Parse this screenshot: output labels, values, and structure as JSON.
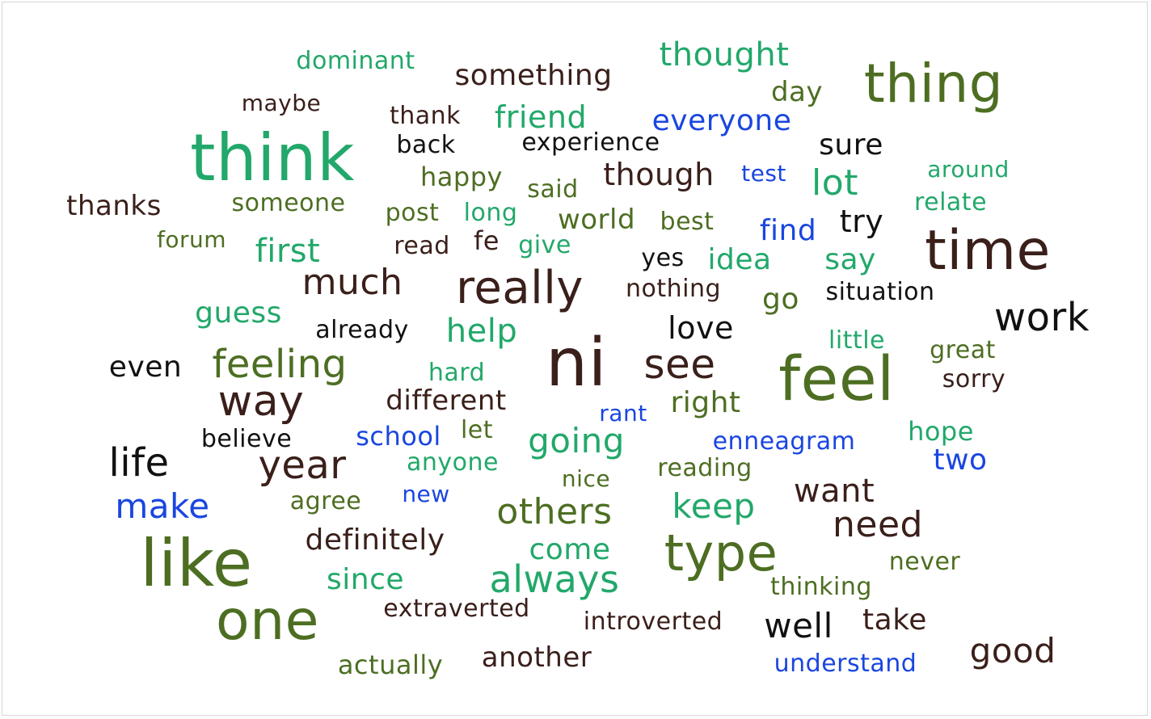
{
  "palette": {
    "dark_brown": "#3a1f1a",
    "black": "#111111",
    "olive": "#4d6e22",
    "teal_green": "#22a86a",
    "blue": "#1a46e0"
  },
  "words": [
    {
      "text": "dominant",
      "color": "teal_green"
    },
    {
      "text": "something",
      "color": "dark_brown"
    },
    {
      "text": "thought",
      "color": "teal_green"
    },
    {
      "text": "thing",
      "color": "olive"
    },
    {
      "text": "day",
      "color": "olive"
    },
    {
      "text": "maybe",
      "color": "dark_brown"
    },
    {
      "text": "thank",
      "color": "dark_brown"
    },
    {
      "text": "friend",
      "color": "teal_green"
    },
    {
      "text": "everyone",
      "color": "blue"
    },
    {
      "text": "think",
      "color": "teal_green"
    },
    {
      "text": "back",
      "color": "black"
    },
    {
      "text": "experience",
      "color": "black"
    },
    {
      "text": "sure",
      "color": "black"
    },
    {
      "text": "happy",
      "color": "olive"
    },
    {
      "text": "though",
      "color": "dark_brown"
    },
    {
      "text": "test",
      "color": "blue"
    },
    {
      "text": "lot",
      "color": "teal_green"
    },
    {
      "text": "around",
      "color": "teal_green"
    },
    {
      "text": "said",
      "color": "olive"
    },
    {
      "text": "thanks",
      "color": "dark_brown"
    },
    {
      "text": "someone",
      "color": "olive"
    },
    {
      "text": "relate",
      "color": "teal_green"
    },
    {
      "text": "post",
      "color": "olive"
    },
    {
      "text": "long",
      "color": "teal_green"
    },
    {
      "text": "world",
      "color": "olive"
    },
    {
      "text": "best",
      "color": "olive"
    },
    {
      "text": "find",
      "color": "blue"
    },
    {
      "text": "try",
      "color": "black"
    },
    {
      "text": "forum",
      "color": "olive"
    },
    {
      "text": "first",
      "color": "teal_green"
    },
    {
      "text": "read",
      "color": "dark_brown"
    },
    {
      "text": "fe",
      "color": "dark_brown"
    },
    {
      "text": "give",
      "color": "teal_green"
    },
    {
      "text": "time",
      "color": "dark_brown"
    },
    {
      "text": "yes",
      "color": "black"
    },
    {
      "text": "idea",
      "color": "teal_green"
    },
    {
      "text": "say",
      "color": "teal_green"
    },
    {
      "text": "much",
      "color": "dark_brown"
    },
    {
      "text": "really",
      "color": "dark_brown"
    },
    {
      "text": "nothing",
      "color": "dark_brown"
    },
    {
      "text": "go",
      "color": "olive"
    },
    {
      "text": "situation",
      "color": "black"
    },
    {
      "text": "guess",
      "color": "teal_green"
    },
    {
      "text": "work",
      "color": "black"
    },
    {
      "text": "already",
      "color": "black"
    },
    {
      "text": "help",
      "color": "teal_green"
    },
    {
      "text": "love",
      "color": "black"
    },
    {
      "text": "little",
      "color": "teal_green"
    },
    {
      "text": "great",
      "color": "olive"
    },
    {
      "text": "even",
      "color": "black"
    },
    {
      "text": "feeling",
      "color": "olive"
    },
    {
      "text": "ni",
      "color": "dark_brown"
    },
    {
      "text": "see",
      "color": "dark_brown"
    },
    {
      "text": "feel",
      "color": "olive"
    },
    {
      "text": "hard",
      "color": "teal_green"
    },
    {
      "text": "sorry",
      "color": "dark_brown"
    },
    {
      "text": "way",
      "color": "dark_brown"
    },
    {
      "text": "different",
      "color": "dark_brown"
    },
    {
      "text": "rant",
      "color": "blue"
    },
    {
      "text": "right",
      "color": "olive"
    },
    {
      "text": "believe",
      "color": "black"
    },
    {
      "text": "school",
      "color": "blue"
    },
    {
      "text": "let",
      "color": "olive"
    },
    {
      "text": "going",
      "color": "teal_green"
    },
    {
      "text": "enneagram",
      "color": "blue"
    },
    {
      "text": "hope",
      "color": "teal_green"
    },
    {
      "text": "life",
      "color": "black"
    },
    {
      "text": "year",
      "color": "dark_brown"
    },
    {
      "text": "anyone",
      "color": "teal_green"
    },
    {
      "text": "reading",
      "color": "olive"
    },
    {
      "text": "two",
      "color": "blue"
    },
    {
      "text": "nice",
      "color": "olive"
    },
    {
      "text": "want",
      "color": "dark_brown"
    },
    {
      "text": "make",
      "color": "blue"
    },
    {
      "text": "agree",
      "color": "olive"
    },
    {
      "text": "new",
      "color": "blue"
    },
    {
      "text": "others",
      "color": "olive"
    },
    {
      "text": "keep",
      "color": "teal_green"
    },
    {
      "text": "need",
      "color": "dark_brown"
    },
    {
      "text": "definitely",
      "color": "dark_brown"
    },
    {
      "text": "like",
      "color": "olive"
    },
    {
      "text": "come",
      "color": "teal_green"
    },
    {
      "text": "type",
      "color": "olive"
    },
    {
      "text": "never",
      "color": "olive"
    },
    {
      "text": "since",
      "color": "teal_green"
    },
    {
      "text": "always",
      "color": "teal_green"
    },
    {
      "text": "thinking",
      "color": "olive"
    },
    {
      "text": "extraverted",
      "color": "dark_brown"
    },
    {
      "text": "one",
      "color": "olive"
    },
    {
      "text": "take",
      "color": "dark_brown"
    },
    {
      "text": "introverted",
      "color": "dark_brown"
    },
    {
      "text": "well",
      "color": "black"
    },
    {
      "text": "good",
      "color": "dark_brown"
    },
    {
      "text": "actually",
      "color": "olive"
    },
    {
      "text": "another",
      "color": "dark_brown"
    },
    {
      "text": "understand",
      "color": "blue"
    }
  ]
}
